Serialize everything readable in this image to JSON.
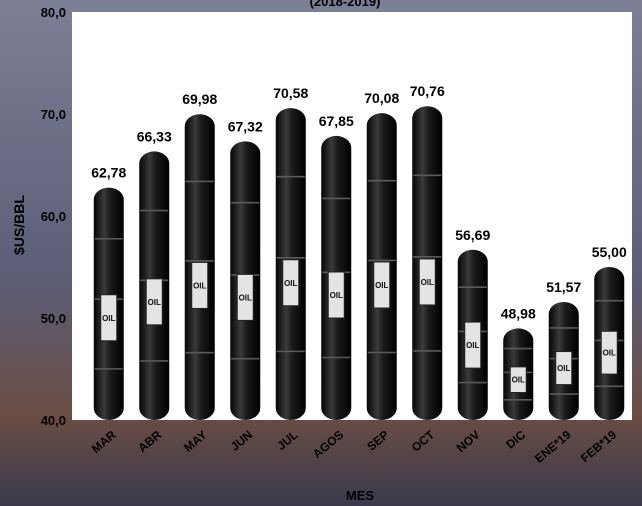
{
  "chart_data": {
    "type": "bar",
    "title": "(2018-2019)",
    "xlabel": "MES",
    "ylabel": "$US/BBL",
    "ylim": [
      40,
      80
    ],
    "yticks": [
      "40,0",
      "50,0",
      "60,0",
      "70,0",
      "80,0"
    ],
    "categories": [
      "MAR",
      "ABR",
      "MAY",
      "JUN",
      "JUL",
      "AGOS",
      "SEP",
      "OCT",
      "NOV",
      "DIC",
      "ENE*19",
      "FEB*19"
    ],
    "values": [
      62.78,
      66.33,
      69.98,
      67.32,
      70.58,
      67.85,
      70.08,
      70.76,
      56.69,
      48.98,
      51.57,
      55.0
    ],
    "value_labels": [
      "62,78",
      "66,33",
      "69,98",
      "67,32",
      "70,58",
      "67,85",
      "70,08",
      "70,76",
      "56,69",
      "48,98",
      "51,57",
      "55,00"
    ],
    "barrel_label": "OIL",
    "grid": false,
    "legend": "none",
    "colors": {
      "background": "#6d6f88",
      "plot_area": "#ffffff",
      "barrel": "#1b1b1b",
      "text": "#000000"
    }
  }
}
